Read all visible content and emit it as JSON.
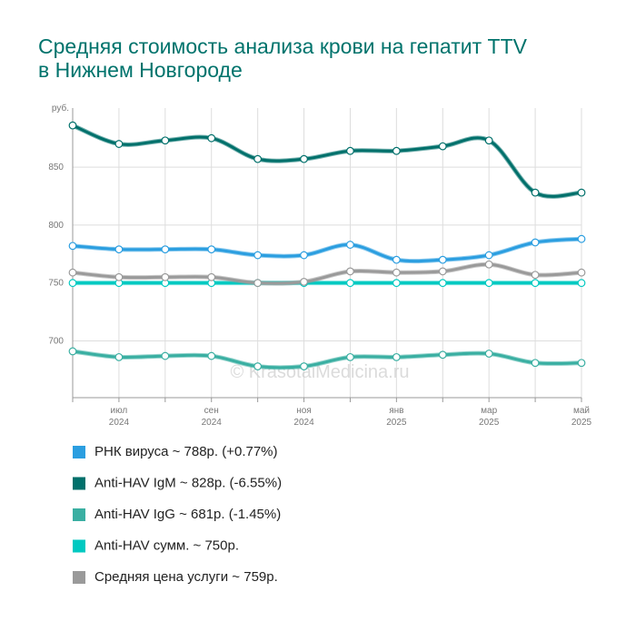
{
  "chart_data": {
    "type": "line",
    "title": "Средняя стоимость анализа крови на гепатит TTV в Нижнем Новгороде",
    "y_label": "руб.",
    "watermark": "© KrasotaiMedicina.ru",
    "categories": [
      null,
      {
        "month": "июл",
        "year": "2024"
      },
      null,
      {
        "month": "сен",
        "year": "2024"
      },
      null,
      {
        "month": "ноя",
        "year": "2024"
      },
      null,
      {
        "month": "янв",
        "year": "2025"
      },
      null,
      {
        "month": "мар",
        "year": "2025"
      },
      null,
      {
        "month": "май",
        "year": "2025"
      }
    ],
    "ylim": [
      651,
      901
    ],
    "yticks": [
      700,
      750,
      800,
      850
    ],
    "grid": true,
    "series": [
      {
        "name": "РНК вируса ~ 788р. (+0.77%)",
        "color": "#2b9ee0",
        "values": [
          782,
          779,
          779,
          779,
          774,
          774,
          783,
          770,
          770,
          774,
          785,
          788
        ]
      },
      {
        "name": "Anti-HAV IgM ~ 828р. (-6.55%)",
        "color": "#00706b",
        "values": [
          886,
          870,
          873,
          875,
          857,
          857,
          864,
          864,
          868,
          873,
          828,
          828
        ]
      },
      {
        "name": "Anti-HAV IgG ~ 681р. (-1.45%)",
        "color": "#3aafa2",
        "values": [
          691,
          686,
          687,
          687,
          678,
          678,
          686,
          686,
          688,
          689,
          681,
          681
        ]
      },
      {
        "name": "Anti-HAV сумм. ~ 750р.",
        "color": "#00c9c1",
        "values": [
          750,
          750,
          750,
          750,
          750,
          750,
          750,
          750,
          750,
          750,
          750,
          750
        ]
      },
      {
        "name": "Средняя цена услуги ~ 759р.",
        "color": "#9a9a9a",
        "values": [
          759,
          755,
          755,
          755,
          750,
          751,
          760,
          759,
          760,
          766,
          757,
          759
        ]
      }
    ]
  }
}
